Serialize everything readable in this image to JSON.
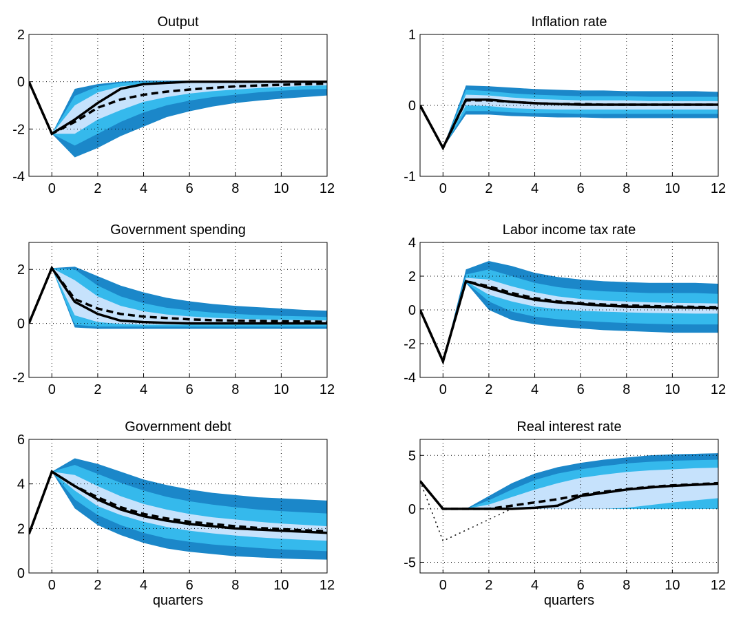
{
  "chart_data": [
    {
      "type": "fan",
      "title": "Output",
      "x": [
        -1,
        0,
        1,
        2,
        3,
        4,
        5,
        6,
        7,
        8,
        9,
        10,
        11,
        12
      ],
      "xlim": [
        -1,
        12
      ],
      "xticks": [
        0,
        2,
        4,
        6,
        8,
        10,
        12
      ],
      "ylim": [
        -4,
        2
      ],
      "yticks": [
        -4,
        -2,
        0,
        2
      ],
      "grid": true,
      "bands": [
        {
          "color": "#1b87c9",
          "upper": [
            null,
            -2.2,
            -0.3,
            -0.1,
            0,
            0.05,
            0.05,
            0.05,
            0.05,
            0.05,
            0.05,
            0.05,
            0.05,
            0.05
          ],
          "lower": [
            null,
            -2.2,
            -3.2,
            -2.8,
            -2.3,
            -1.9,
            -1.5,
            -1.25,
            -1.05,
            -0.9,
            -0.8,
            -0.72,
            -0.65,
            -0.58
          ]
        },
        {
          "color": "#35b9ec",
          "upper": [
            null,
            -2.2,
            -0.6,
            -0.2,
            -0.05,
            0,
            0,
            0,
            0,
            0,
            0,
            0,
            0,
            0
          ],
          "lower": [
            null,
            -2.2,
            -2.7,
            -2.2,
            -1.7,
            -1.3,
            -1.0,
            -0.8,
            -0.65,
            -0.55,
            -0.45,
            -0.38,
            -0.33,
            -0.3
          ]
        },
        {
          "color": "#c6e2fc",
          "upper": [
            null,
            -2.2,
            -1.0,
            -0.45,
            -0.2,
            -0.1,
            -0.05,
            -0.03,
            -0.02,
            -0.01,
            -0.01,
            0,
            0,
            0
          ],
          "lower": [
            null,
            -2.2,
            -2.2,
            -1.6,
            -1.2,
            -0.85,
            -0.65,
            -0.5,
            -0.4,
            -0.33,
            -0.27,
            -0.22,
            -0.18,
            -0.15
          ]
        }
      ],
      "lines": [
        {
          "color": "#000000",
          "style": "solid",
          "values": [
            0,
            -2.2,
            -1.6,
            -0.9,
            -0.3,
            -0.1,
            -0.05,
            0,
            0,
            0,
            0,
            0,
            0,
            0
          ]
        },
        {
          "color": "#000000",
          "style": "dashed",
          "values": [
            0,
            -2.2,
            -1.7,
            -1.1,
            -0.75,
            -0.55,
            -0.42,
            -0.33,
            -0.26,
            -0.2,
            -0.16,
            -0.13,
            -0.1,
            -0.08
          ]
        }
      ]
    },
    {
      "type": "fan",
      "title": "Inflation rate",
      "x": [
        -1,
        0,
        1,
        2,
        3,
        4,
        5,
        6,
        7,
        8,
        9,
        10,
        11,
        12
      ],
      "xlim": [
        -1,
        12
      ],
      "xticks": [
        0,
        2,
        4,
        6,
        8,
        10,
        12
      ],
      "ylim": [
        -1,
        1
      ],
      "yticks": [
        -1,
        0,
        1
      ],
      "grid": true,
      "bands": [
        {
          "color": "#1b87c9",
          "upper": [
            null,
            -0.6,
            0.28,
            0.27,
            0.25,
            0.23,
            0.22,
            0.21,
            0.21,
            0.2,
            0.2,
            0.2,
            0.2,
            0.19
          ],
          "lower": [
            null,
            -0.6,
            -0.13,
            -0.13,
            -0.15,
            -0.16,
            -0.17,
            -0.17,
            -0.18,
            -0.18,
            -0.18,
            -0.18,
            -0.18,
            -0.18
          ]
        },
        {
          "color": "#35b9ec",
          "upper": [
            null,
            -0.6,
            0.22,
            0.2,
            0.17,
            0.15,
            0.14,
            0.13,
            0.13,
            0.13,
            0.12,
            0.12,
            0.12,
            0.12
          ],
          "lower": [
            null,
            -0.6,
            -0.08,
            -0.08,
            -0.1,
            -0.11,
            -0.11,
            -0.12,
            -0.12,
            -0.12,
            -0.12,
            -0.12,
            -0.12,
            -0.12
          ]
        },
        {
          "color": "#c6e2fc",
          "upper": [
            null,
            -0.6,
            0.15,
            0.14,
            0.11,
            0.09,
            0.08,
            0.07,
            0.07,
            0.07,
            0.06,
            0.06,
            0.06,
            0.06
          ],
          "lower": [
            null,
            -0.6,
            0,
            -0.01,
            -0.04,
            -0.05,
            -0.06,
            -0.06,
            -0.06,
            -0.06,
            -0.06,
            -0.06,
            -0.06,
            -0.06
          ]
        }
      ],
      "lines": [
        {
          "color": "#000000",
          "style": "solid",
          "values": [
            0,
            -0.6,
            0.08,
            0.08,
            0.05,
            0.03,
            0.02,
            0.01,
            0.01,
            0.01,
            0.01,
            0.01,
            0.01,
            0.01
          ]
        },
        {
          "color": "#000000",
          "style": "dashed",
          "values": [
            0,
            -0.6,
            0.07,
            0.07,
            0.05,
            0.03,
            0.02,
            0.02,
            0.01,
            0.01,
            0.01,
            0.01,
            0.01,
            0.01
          ]
        }
      ]
    },
    {
      "type": "fan",
      "title": "Government spending",
      "x": [
        -1,
        0,
        1,
        2,
        3,
        4,
        5,
        6,
        7,
        8,
        9,
        10,
        11,
        12
      ],
      "xlim": [
        -1,
        12
      ],
      "xticks": [
        0,
        2,
        4,
        6,
        8,
        10,
        12
      ],
      "ylim": [
        -2,
        3
      ],
      "yticks": [
        -2,
        0,
        2
      ],
      "grid": true,
      "bands": [
        {
          "color": "#1b87c9",
          "upper": [
            null,
            2.05,
            2.1,
            1.75,
            1.4,
            1.15,
            0.95,
            0.82,
            0.72,
            0.65,
            0.6,
            0.55,
            0.5,
            0.47
          ],
          "lower": [
            null,
            2.05,
            -0.15,
            -0.2,
            -0.2,
            -0.2,
            -0.2,
            -0.2,
            -0.2,
            -0.2,
            -0.2,
            -0.2,
            -0.2,
            -0.2
          ]
        },
        {
          "color": "#35b9ec",
          "upper": [
            null,
            2.05,
            2.0,
            1.4,
            1.0,
            0.75,
            0.58,
            0.48,
            0.4,
            0.35,
            0.31,
            0.28,
            0.26,
            0.24
          ],
          "lower": [
            null,
            2.05,
            -0.05,
            -0.12,
            -0.12,
            -0.12,
            -0.12,
            -0.12,
            -0.12,
            -0.12,
            -0.12,
            -0.12,
            -0.12,
            -0.12
          ]
        },
        {
          "color": "#c6e2fc",
          "upper": [
            null,
            2.05,
            1.6,
            1.0,
            0.65,
            0.45,
            0.33,
            0.26,
            0.21,
            0.18,
            0.15,
            0.13,
            0.12,
            0.11
          ],
          "lower": [
            null,
            2.05,
            0.3,
            0.05,
            -0.02,
            -0.05,
            -0.05,
            -0.05,
            -0.05,
            -0.05,
            -0.05,
            -0.05,
            -0.05,
            -0.05
          ]
        }
      ],
      "lines": [
        {
          "color": "#000000",
          "style": "solid",
          "values": [
            0,
            2.05,
            0.8,
            0.35,
            0.1,
            0.05,
            0.02,
            0,
            0,
            0,
            0,
            0,
            0,
            0
          ]
        },
        {
          "color": "#000000",
          "style": "dashed",
          "values": [
            0,
            2.05,
            0.9,
            0.55,
            0.35,
            0.25,
            0.2,
            0.15,
            0.12,
            0.1,
            0.09,
            0.08,
            0.07,
            0.06
          ]
        }
      ]
    },
    {
      "type": "fan",
      "title": "Labor income tax rate",
      "x": [
        -1,
        0,
        1,
        2,
        3,
        4,
        5,
        6,
        7,
        8,
        9,
        10,
        11,
        12
      ],
      "xlim": [
        -1,
        12
      ],
      "xticks": [
        0,
        2,
        4,
        6,
        8,
        10,
        12
      ],
      "ylim": [
        -4,
        4
      ],
      "yticks": [
        -4,
        -2,
        0,
        2,
        4
      ],
      "grid": true,
      "bands": [
        {
          "color": "#1b87c9",
          "upper": [
            null,
            -3.05,
            2.4,
            2.9,
            2.6,
            2.2,
            1.95,
            1.8,
            1.7,
            1.65,
            1.6,
            1.6,
            1.6,
            1.55
          ],
          "lower": [
            null,
            -3.05,
            1.6,
            0,
            -0.6,
            -0.85,
            -1.0,
            -1.1,
            -1.2,
            -1.25,
            -1.3,
            -1.35,
            -1.35,
            -1.35
          ]
        },
        {
          "color": "#35b9ec",
          "upper": [
            null,
            -3.05,
            2.1,
            2.4,
            2.0,
            1.6,
            1.35,
            1.2,
            1.1,
            1.05,
            1.0,
            1.0,
            1.0,
            0.95
          ],
          "lower": [
            null,
            -3.05,
            1.65,
            0.5,
            -0.1,
            -0.4,
            -0.55,
            -0.65,
            -0.72,
            -0.78,
            -0.82,
            -0.85,
            -0.86,
            -0.86
          ]
        },
        {
          "color": "#c6e2fc",
          "upper": [
            null,
            -3.05,
            1.9,
            1.8,
            1.4,
            1.05,
            0.8,
            0.65,
            0.55,
            0.5,
            0.45,
            0.42,
            0.4,
            0.38
          ],
          "lower": [
            null,
            -3.05,
            1.7,
            0.9,
            0.5,
            0.2,
            0.05,
            -0.05,
            -0.1,
            -0.15,
            -0.18,
            -0.2,
            -0.22,
            -0.22
          ]
        }
      ],
      "lines": [
        {
          "color": "#000000",
          "style": "solid",
          "values": [
            0,
            -3.05,
            1.7,
            1.3,
            0.9,
            0.6,
            0.45,
            0.35,
            0.25,
            0.2,
            0.18,
            0.15,
            0.12,
            0.1
          ]
        },
        {
          "color": "#000000",
          "style": "dashed",
          "values": [
            0,
            -3.05,
            1.7,
            1.4,
            1.0,
            0.7,
            0.5,
            0.4,
            0.32,
            0.27,
            0.23,
            0.2,
            0.18,
            0.16
          ]
        }
      ]
    },
    {
      "type": "fan",
      "title": "Government debt",
      "xlabel": "quarters",
      "x": [
        -1,
        0,
        1,
        2,
        3,
        4,
        5,
        6,
        7,
        8,
        9,
        10,
        11,
        12
      ],
      "xlim": [
        -1,
        12
      ],
      "xticks": [
        0,
        2,
        4,
        6,
        8,
        10,
        12
      ],
      "ylim": [
        0,
        6
      ],
      "yticks": [
        0,
        2,
        4,
        6
      ],
      "grid": true,
      "bands": [
        {
          "color": "#1b87c9",
          "upper": [
            null,
            4.55,
            5.15,
            4.9,
            4.55,
            4.2,
            3.95,
            3.75,
            3.6,
            3.5,
            3.4,
            3.35,
            3.3,
            3.25
          ],
          "lower": [
            null,
            4.55,
            2.9,
            2.15,
            1.7,
            1.35,
            1.1,
            0.95,
            0.85,
            0.75,
            0.7,
            0.65,
            0.62,
            0.6
          ]
        },
        {
          "color": "#35b9ec",
          "upper": [
            null,
            4.55,
            4.85,
            4.45,
            4.05,
            3.7,
            3.42,
            3.22,
            3.07,
            2.95,
            2.85,
            2.78,
            2.72,
            2.67
          ],
          "lower": [
            null,
            4.55,
            3.3,
            2.6,
            2.15,
            1.8,
            1.55,
            1.4,
            1.28,
            1.2,
            1.12,
            1.06,
            1.02,
            0.98
          ]
        },
        {
          "color": "#c6e2fc",
          "upper": [
            null,
            4.55,
            4.4,
            3.9,
            3.45,
            3.1,
            2.85,
            2.65,
            2.5,
            2.4,
            2.3,
            2.22,
            2.16,
            2.1
          ],
          "lower": [
            null,
            4.55,
            3.7,
            3.0,
            2.6,
            2.3,
            2.07,
            1.9,
            1.78,
            1.68,
            1.6,
            1.54,
            1.49,
            1.45
          ]
        }
      ],
      "lines": [
        {
          "color": "#000000",
          "style": "solid",
          "values": [
            1.75,
            4.55,
            3.9,
            3.3,
            2.85,
            2.55,
            2.35,
            2.2,
            2.1,
            2.0,
            1.95,
            1.9,
            1.85,
            1.8
          ]
        },
        {
          "color": "#000000",
          "style": "dashed",
          "values": [
            1.75,
            4.55,
            3.9,
            3.4,
            2.95,
            2.65,
            2.45,
            2.3,
            2.2,
            2.1,
            2.02,
            1.97,
            1.92,
            1.87
          ]
        }
      ]
    },
    {
      "type": "fan",
      "title": "Real interest rate",
      "xlabel": "quarters",
      "x": [
        -1,
        0,
        1,
        2,
        3,
        4,
        5,
        6,
        7,
        8,
        9,
        10,
        11,
        12
      ],
      "xlim": [
        -1,
        12
      ],
      "xticks": [
        0,
        2,
        4,
        6,
        8,
        10,
        12
      ],
      "ylim": [
        -6,
        6.5
      ],
      "yticks": [
        -5,
        0,
        5
      ],
      "grid": true,
      "bands": [
        {
          "color": "#1b87c9",
          "upper": [
            null,
            0,
            0,
            1.2,
            2.4,
            3.3,
            3.9,
            4.3,
            4.6,
            4.8,
            5.0,
            5.1,
            5.15,
            5.2
          ],
          "lower": [
            null,
            0,
            0,
            0,
            0,
            0,
            0,
            0,
            0,
            0,
            0,
            0,
            0,
            0
          ]
        },
        {
          "color": "#35b9ec",
          "upper": [
            null,
            0,
            0,
            0.8,
            1.8,
            2.7,
            3.3,
            3.7,
            4.0,
            4.25,
            4.4,
            4.5,
            4.55,
            4.6
          ],
          "lower": [
            null,
            0,
            0,
            0,
            0,
            0,
            0,
            0,
            0,
            0,
            0,
            0,
            0,
            0
          ]
        },
        {
          "color": "#c6e2fc",
          "upper": [
            null,
            0,
            0,
            0.4,
            1.1,
            1.8,
            2.4,
            2.9,
            3.2,
            3.45,
            3.6,
            3.7,
            3.8,
            3.85
          ],
          "lower": [
            null,
            0,
            0,
            0,
            0,
            0,
            0,
            0,
            0,
            0.1,
            0.35,
            0.6,
            0.8,
            1.0
          ]
        }
      ],
      "lines": [
        {
          "color": "#000000",
          "style": "solid",
          "values": [
            2.6,
            0,
            0,
            0,
            0,
            0.1,
            0.3,
            1.2,
            1.5,
            1.8,
            2.0,
            2.15,
            2.25,
            2.35
          ]
        },
        {
          "color": "#000000",
          "style": "dashed",
          "values": [
            2.6,
            0,
            0,
            0,
            0.3,
            0.6,
            0.9,
            1.3,
            1.6,
            1.85,
            2.05,
            2.2,
            2.3,
            2.4
          ]
        },
        {
          "color": "#000000",
          "style": "dotted",
          "values": [
            2.6,
            -3,
            -2,
            -1,
            0,
            null,
            null,
            null,
            null,
            null,
            null,
            null,
            null,
            null
          ]
        }
      ]
    }
  ]
}
